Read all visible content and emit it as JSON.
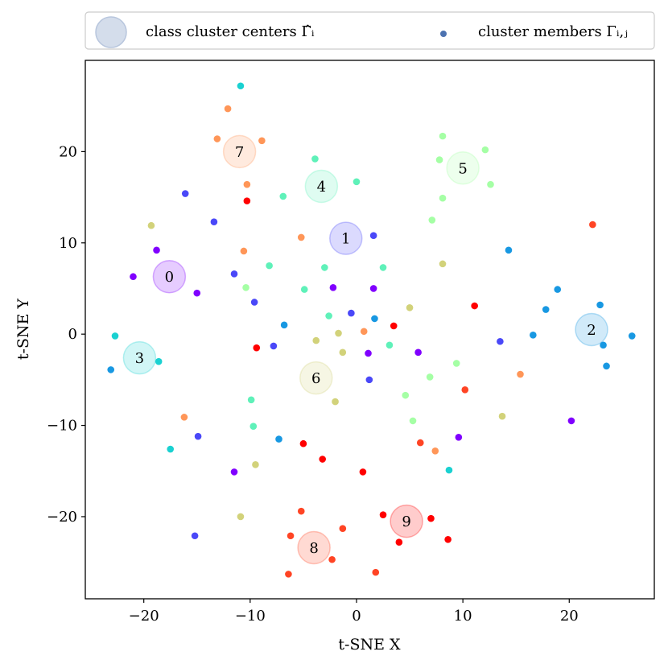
{
  "chart_data": {
    "type": "scatter",
    "xlabel": "t-SNE X",
    "ylabel": "t-SNE Y",
    "xlim": [
      -25.5,
      28
    ],
    "ylim": [
      -29,
      30
    ],
    "xticks": [
      -20,
      -10,
      0,
      10,
      20
    ],
    "yticks": [
      -20,
      -10,
      0,
      10,
      20
    ],
    "xtick_labels": [
      "−20",
      "−10",
      "0",
      "10",
      "20"
    ],
    "ytick_labels": [
      "−20",
      "−10",
      "0",
      "10",
      "20"
    ],
    "grid": false,
    "legend": {
      "placement": "top, outside plot",
      "entries": [
        {
          "label": "class cluster centers Γ̂ᵢ",
          "marker": "large circle",
          "color": "#b8c6dd"
        },
        {
          "label": "cluster members Γᵢ,ⱼ",
          "marker": "small dot",
          "color": "#4c72b0"
        }
      ]
    },
    "class_colors": [
      "#8000ff",
      "#4a48f8",
      "#1898e2",
      "#1ad1d1",
      "#5ff1b9",
      "#a5ffa5",
      "#d2d27a",
      "#ff9658",
      "#ff4424",
      "#ff0000"
    ],
    "centers": [
      {
        "label": "0",
        "x": -17.6,
        "y": 6.3
      },
      {
        "label": "1",
        "x": -1.0,
        "y": 10.5
      },
      {
        "label": "2",
        "x": 22.1,
        "y": 0.5
      },
      {
        "label": "3",
        "x": -20.4,
        "y": -2.6
      },
      {
        "label": "4",
        "x": -3.3,
        "y": 16.2
      },
      {
        "label": "5",
        "x": 10.0,
        "y": 18.2
      },
      {
        "label": "6",
        "x": -3.8,
        "y": -4.8
      },
      {
        "label": "7",
        "x": -11.0,
        "y": 20.0
      },
      {
        "label": "8",
        "x": -4.0,
        "y": -23.4
      },
      {
        "label": "9",
        "x": 4.7,
        "y": -20.5
      }
    ],
    "members": [
      {
        "class": 0,
        "x": -18.8,
        "y": 9.2
      },
      {
        "class": 0,
        "x": -21.0,
        "y": 6.3
      },
      {
        "class": 0,
        "x": -15.0,
        "y": 4.5
      },
      {
        "class": 0,
        "x": -2.2,
        "y": 5.1
      },
      {
        "class": 0,
        "x": 1.6,
        "y": 5.0
      },
      {
        "class": 0,
        "x": 1.1,
        "y": -2.1
      },
      {
        "class": 0,
        "x": 5.8,
        "y": -2.0
      },
      {
        "class": 0,
        "x": 9.6,
        "y": -11.3
      },
      {
        "class": 0,
        "x": 20.2,
        "y": -9.5
      },
      {
        "class": 0,
        "x": -11.5,
        "y": -15.1
      },
      {
        "class": 1,
        "x": -16.1,
        "y": 15.4
      },
      {
        "class": 1,
        "x": -13.4,
        "y": 12.3
      },
      {
        "class": 1,
        "x": -11.5,
        "y": 6.6
      },
      {
        "class": 1,
        "x": -9.6,
        "y": 3.5
      },
      {
        "class": 1,
        "x": -7.8,
        "y": -1.3
      },
      {
        "class": 1,
        "x": -0.5,
        "y": 2.3
      },
      {
        "class": 1,
        "x": 1.6,
        "y": 10.8
      },
      {
        "class": 1,
        "x": 1.2,
        "y": -5.0
      },
      {
        "class": 1,
        "x": 13.5,
        "y": -0.8
      },
      {
        "class": 1,
        "x": -14.9,
        "y": -11.2
      },
      {
        "class": 1,
        "x": -15.2,
        "y": -22.1
      },
      {
        "class": 2,
        "x": -6.8,
        "y": 1.0
      },
      {
        "class": 2,
        "x": 1.7,
        "y": 1.7
      },
      {
        "class": 2,
        "x": 14.3,
        "y": 9.2
      },
      {
        "class": 2,
        "x": 16.6,
        "y": -0.1
      },
      {
        "class": 2,
        "x": 17.8,
        "y": 2.7
      },
      {
        "class": 2,
        "x": 18.9,
        "y": 4.9
      },
      {
        "class": 2,
        "x": 22.9,
        "y": 3.2
      },
      {
        "class": 2,
        "x": 23.2,
        "y": -1.2
      },
      {
        "class": 2,
        "x": 23.5,
        "y": -3.5
      },
      {
        "class": 2,
        "x": 25.9,
        "y": -0.2
      },
      {
        "class": 2,
        "x": -7.3,
        "y": -11.5
      },
      {
        "class": 2,
        "x": -23.1,
        "y": -3.9
      },
      {
        "class": 3,
        "x": -22.7,
        "y": -0.2
      },
      {
        "class": 3,
        "x": -18.6,
        "y": -3.0
      },
      {
        "class": 3,
        "x": -17.5,
        "y": -12.6
      },
      {
        "class": 3,
        "x": 8.7,
        "y": -14.9
      },
      {
        "class": 3,
        "x": -10.9,
        "y": 27.2
      },
      {
        "class": 4,
        "x": -3.9,
        "y": 19.2
      },
      {
        "class": 4,
        "x": 0.0,
        "y": 16.7
      },
      {
        "class": 4,
        "x": -6.9,
        "y": 15.1
      },
      {
        "class": 4,
        "x": -8.2,
        "y": 7.5
      },
      {
        "class": 4,
        "x": -3.0,
        "y": 7.3
      },
      {
        "class": 4,
        "x": -4.9,
        "y": 4.9
      },
      {
        "class": 4,
        "x": -2.6,
        "y": 2.0
      },
      {
        "class": 4,
        "x": 2.5,
        "y": 7.3
      },
      {
        "class": 4,
        "x": 3.1,
        "y": -1.2
      },
      {
        "class": 4,
        "x": -9.9,
        "y": -7.2
      },
      {
        "class": 4,
        "x": -9.7,
        "y": -10.1
      },
      {
        "class": 5,
        "x": 8.1,
        "y": 21.7
      },
      {
        "class": 5,
        "x": 7.8,
        "y": 19.1
      },
      {
        "class": 5,
        "x": 12.1,
        "y": 20.2
      },
      {
        "class": 5,
        "x": 12.6,
        "y": 16.4
      },
      {
        "class": 5,
        "x": 8.1,
        "y": 14.9
      },
      {
        "class": 5,
        "x": 7.1,
        "y": 12.5
      },
      {
        "class": 5,
        "x": -10.4,
        "y": 5.1
      },
      {
        "class": 5,
        "x": 9.4,
        "y": -3.2
      },
      {
        "class": 5,
        "x": 6.9,
        "y": -4.7
      },
      {
        "class": 5,
        "x": 4.6,
        "y": -6.7
      },
      {
        "class": 5,
        "x": 5.3,
        "y": -9.5
      },
      {
        "class": 6,
        "x": -19.3,
        "y": 11.9
      },
      {
        "class": 6,
        "x": 8.1,
        "y": 7.7
      },
      {
        "class": 6,
        "x": 5.0,
        "y": 2.9
      },
      {
        "class": 6,
        "x": -3.8,
        "y": -0.7
      },
      {
        "class": 6,
        "x": -1.7,
        "y": 0.1
      },
      {
        "class": 6,
        "x": -1.3,
        "y": -2.0
      },
      {
        "class": 6,
        "x": -2.0,
        "y": -7.4
      },
      {
        "class": 6,
        "x": 13.7,
        "y": -9.0
      },
      {
        "class": 6,
        "x": -9.5,
        "y": -14.3
      },
      {
        "class": 6,
        "x": -10.9,
        "y": -20.0
      },
      {
        "class": 7,
        "x": -12.1,
        "y": 24.7
      },
      {
        "class": 7,
        "x": -13.1,
        "y": 21.4
      },
      {
        "class": 7,
        "x": -8.9,
        "y": 21.2
      },
      {
        "class": 7,
        "x": -10.3,
        "y": 16.4
      },
      {
        "class": 7,
        "x": -10.6,
        "y": 9.1
      },
      {
        "class": 7,
        "x": -5.2,
        "y": 10.6
      },
      {
        "class": 7,
        "x": 0.7,
        "y": 0.3
      },
      {
        "class": 7,
        "x": 15.4,
        "y": -4.4
      },
      {
        "class": 7,
        "x": -16.2,
        "y": -9.1
      },
      {
        "class": 7,
        "x": 7.4,
        "y": -12.8
      },
      {
        "class": 8,
        "x": 22.2,
        "y": 12.0
      },
      {
        "class": 8,
        "x": 10.2,
        "y": -6.1
      },
      {
        "class": 8,
        "x": 6.0,
        "y": -11.9
      },
      {
        "class": 8,
        "x": -5.2,
        "y": -19.4
      },
      {
        "class": 8,
        "x": -6.2,
        "y": -22.1
      },
      {
        "class": 8,
        "x": -1.3,
        "y": -21.3
      },
      {
        "class": 8,
        "x": -2.3,
        "y": -24.7
      },
      {
        "class": 8,
        "x": -6.4,
        "y": -26.3
      },
      {
        "class": 8,
        "x": 1.8,
        "y": -26.1
      },
      {
        "class": 9,
        "x": -10.3,
        "y": 14.6
      },
      {
        "class": 9,
        "x": 11.1,
        "y": 3.1
      },
      {
        "class": 9,
        "x": 3.5,
        "y": 0.9
      },
      {
        "class": 9,
        "x": -9.4,
        "y": -1.5
      },
      {
        "class": 9,
        "x": -5.0,
        "y": -12.0
      },
      {
        "class": 9,
        "x": -3.2,
        "y": -13.7
      },
      {
        "class": 9,
        "x": 0.6,
        "y": -15.1
      },
      {
        "class": 9,
        "x": 2.5,
        "y": -19.8
      },
      {
        "class": 9,
        "x": 7.0,
        "y": -20.2
      },
      {
        "class": 9,
        "x": 4.0,
        "y": -22.8
      },
      {
        "class": 9,
        "x": 8.6,
        "y": -22.5
      }
    ]
  }
}
